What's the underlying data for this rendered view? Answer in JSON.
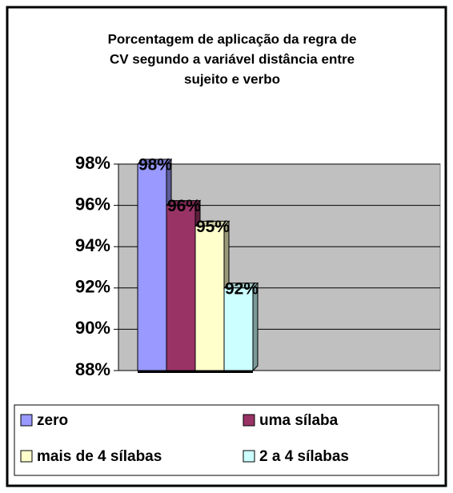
{
  "chart_data": {
    "type": "bar",
    "title_lines": [
      "Porcentagem de aplicação da regra de",
      "CV segundo a variável distância entre",
      "sujeito e verbo"
    ],
    "series": [
      {
        "name": "zero",
        "color": "#9999ff",
        "values": [
          98
        ],
        "value_labels": [
          "98%"
        ]
      },
      {
        "name": "uma sílaba",
        "color": "#993366",
        "values": [
          96
        ],
        "value_labels": [
          "96%"
        ]
      },
      {
        "name": "mais de 4 sílabas",
        "color": "#ffffcc",
        "values": [
          95
        ],
        "value_labels": [
          "95%"
        ]
      },
      {
        "name": "2 a 4 sílabas",
        "color": "#ccffff",
        "values": [
          92
        ],
        "value_labels": [
          "92%"
        ]
      }
    ],
    "ylim": [
      88,
      98
    ],
    "yticks": [
      {
        "value": 88,
        "label": "88%"
      },
      {
        "value": 90,
        "label": "90%"
      },
      {
        "value": 92,
        "label": "92%"
      },
      {
        "value": 94,
        "label": "94%"
      },
      {
        "value": 96,
        "label": "96%"
      },
      {
        "value": 98,
        "label": "98%"
      }
    ],
    "grid": true,
    "legend": "bottom"
  }
}
